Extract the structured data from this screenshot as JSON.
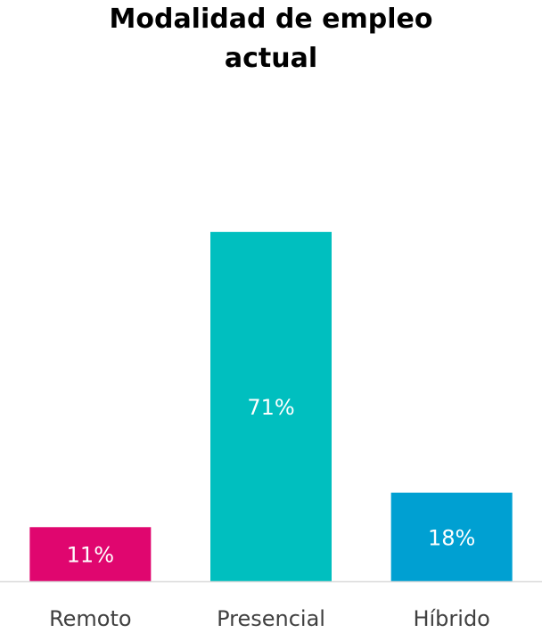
{
  "chart_data": {
    "type": "bar",
    "title_lines": [
      "Modalidad de empleo",
      "actual"
    ],
    "categories": [
      "Remoto",
      "Presencial",
      "Híbrido"
    ],
    "values": [
      11,
      71,
      18
    ],
    "value_labels": [
      "11%",
      "71%",
      "18%"
    ],
    "colors": [
      "#e0066f",
      "#00bfbf",
      "#00a0d2"
    ],
    "ylim": [
      0,
      80
    ],
    "grid": false,
    "legend": "none",
    "axis_color": "#d9d9d9",
    "label_color": "#404040"
  }
}
